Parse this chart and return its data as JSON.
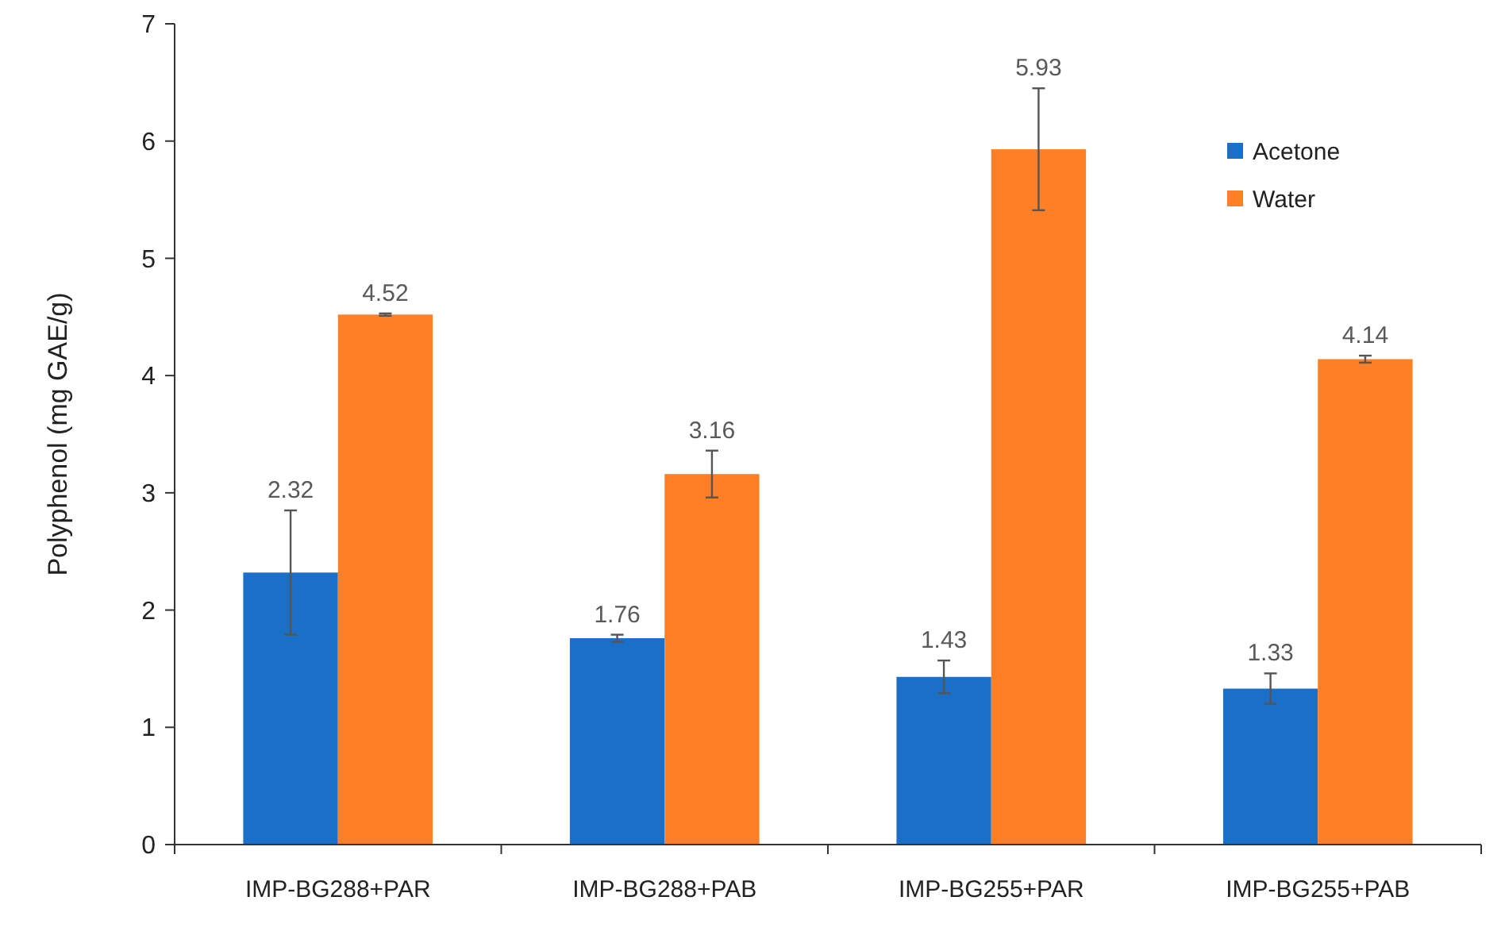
{
  "chart_data": {
    "type": "bar",
    "ylabel": "Polyphenol (mg GAE/g)",
    "categories": [
      "IMP-BG288+PAR",
      "IMP-BG288+PAB",
      "IMP-BG255+PAR",
      "IMP-BG255+PAB"
    ],
    "series": [
      {
        "name": "Acetone",
        "color": "#1a70c8",
        "values": [
          2.32,
          1.76,
          1.43,
          1.33
        ],
        "errors": [
          0.53,
          0.03,
          0.14,
          0.13
        ]
      },
      {
        "name": "Water",
        "color": "#ff7f27",
        "values": [
          4.52,
          3.16,
          5.93,
          4.14
        ],
        "errors": [
          0.01,
          0.2,
          0.52,
          0.03
        ]
      }
    ],
    "ylim": [
      0,
      7
    ],
    "yticks": [
      0,
      1,
      2,
      3,
      4,
      5,
      6,
      7
    ],
    "data_labels": true,
    "grid": false,
    "legend": "top right"
  }
}
